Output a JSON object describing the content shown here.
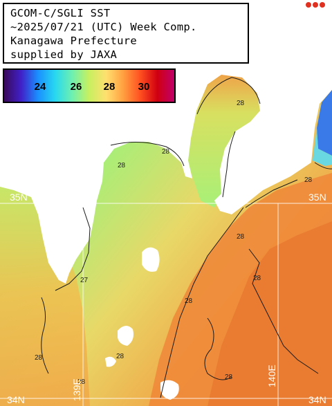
{
  "title": {
    "lines": [
      "GCOM-C/SGLI SST",
      "~2025/07/21 (UTC) Week Comp.",
      "Kanagawa Prefecture",
      "supplied by JAXA"
    ]
  },
  "colorbar": {
    "ticks": [
      "24",
      "26",
      "28",
      "30"
    ],
    "colors": [
      "#3a0a5a",
      "#4020c8",
      "#1a90ff",
      "#27d8f0",
      "#6ef0b0",
      "#c8f060",
      "#ffe070",
      "#ffa040",
      "#ff5020",
      "#d00010",
      "#c0006a"
    ]
  },
  "contour_labels": {
    "bay_north": "28",
    "bay_west": "28",
    "coast_a": "28",
    "coast_b": "28",
    "sagami_west": "27",
    "mid_a": "28",
    "mid_b": "28",
    "south_a": "28",
    "south_b": "28",
    "south_c": "28",
    "east_a": "28",
    "east_b": "28"
  },
  "grid_labels": {
    "lat_35_right": "35N",
    "lat_35_left": "35N",
    "lat_34_left": "34N",
    "lat_34_right": "34N",
    "lon_139": "139E",
    "lon_140": "140E"
  },
  "colors": {
    "land": "#ffffff",
    "sst_cool": "#a8f070",
    "sst_mid": "#f0d060",
    "sst_warm": "#f0a040",
    "sst_hot": "#e87830",
    "grid": "#ffffff",
    "contour": "#1a1a1a"
  }
}
